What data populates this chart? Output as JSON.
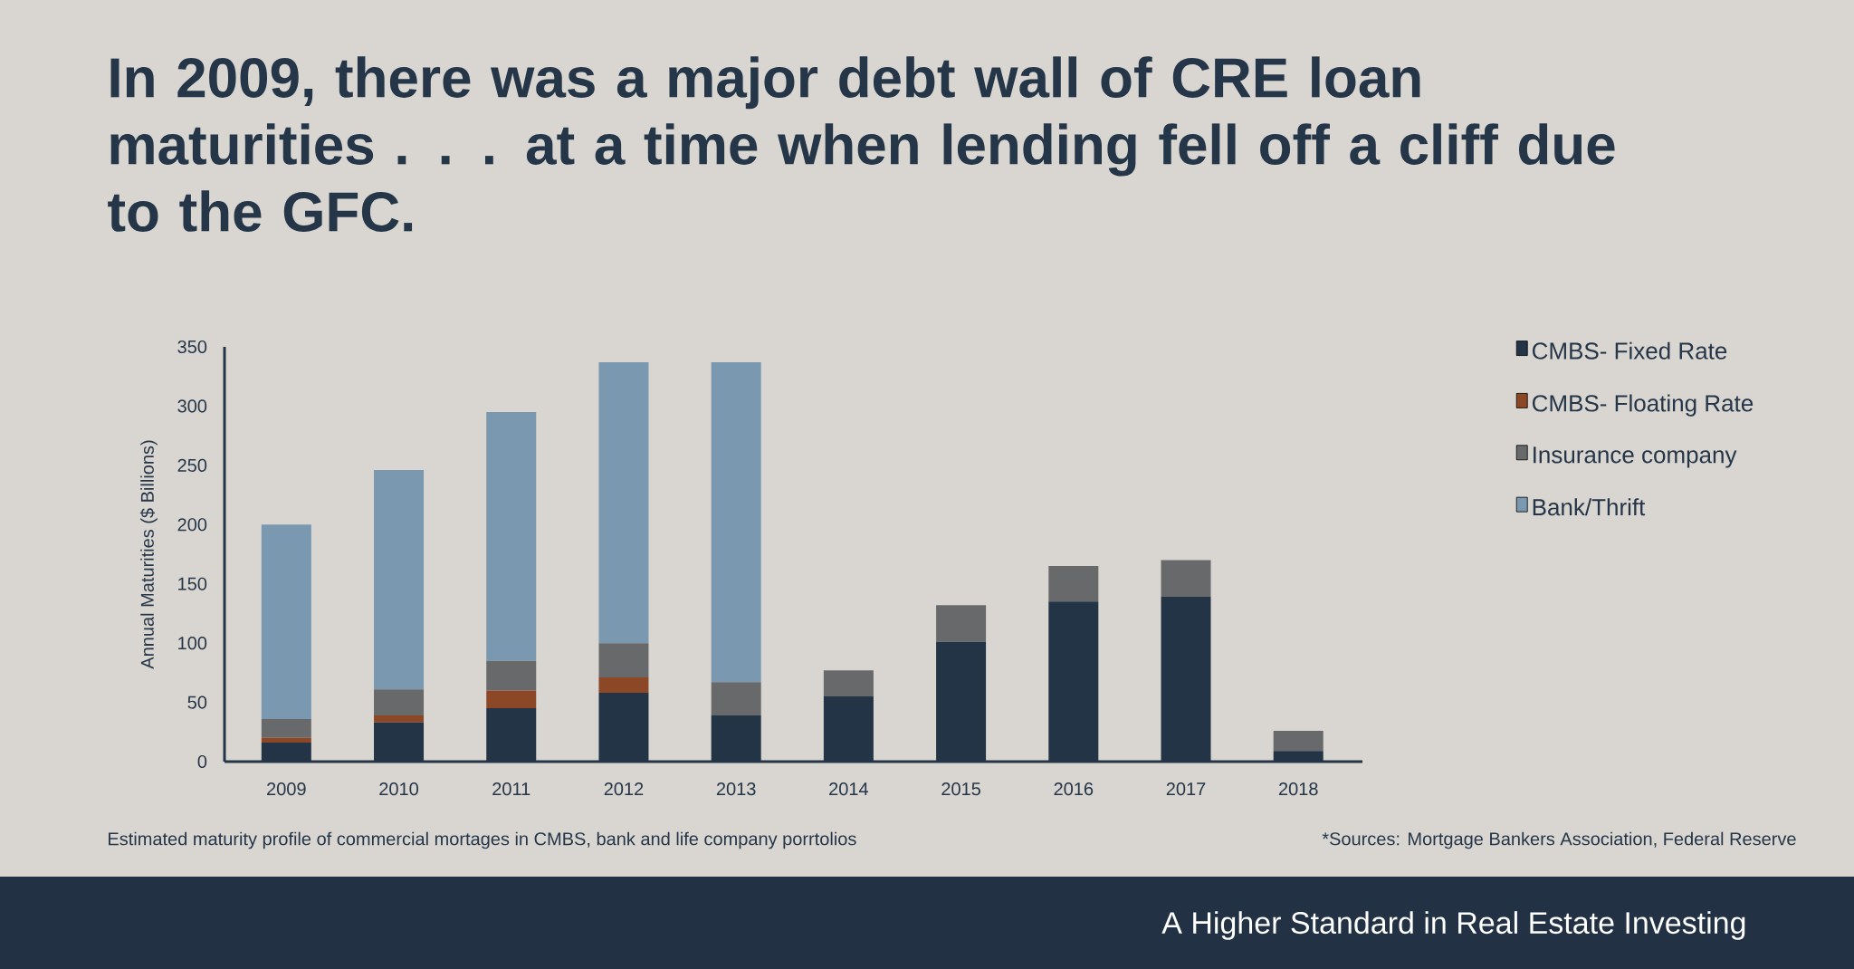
{
  "chart_data": {
    "type": "bar",
    "stacked": true,
    "title": "In 2009, there was a major debt wall of CRE loan maturities . . . at a time when lending fell off a cliff due to the GFC.",
    "ylabel": "Annual Maturities ($ Billions)",
    "categories": [
      "2009",
      "2010",
      "2011",
      "2012",
      "2013",
      "2014",
      "2015",
      "2016",
      "2017",
      "2018"
    ],
    "series": [
      {
        "name": "CMBS- Fixed Rate",
        "color": "#233446",
        "values": [
          16,
          33,
          45,
          58,
          39,
          55,
          101,
          135,
          139,
          9
        ]
      },
      {
        "name": "CMBS- Floating Rate",
        "color": "#8b4726",
        "values": [
          4,
          6,
          15,
          13,
          0,
          0,
          0,
          0,
          0,
          0
        ]
      },
      {
        "name": "Insurance company",
        "color": "#68696b",
        "values": [
          16,
          22,
          25,
          29,
          28,
          22,
          31,
          30,
          31,
          17
        ]
      },
      {
        "name": "Bank/Thrift",
        "color": "#7a98af",
        "values": [
          164,
          185,
          210,
          237,
          270,
          0,
          0,
          0,
          0,
          0
        ]
      }
    ],
    "ylim": [
      0,
      350
    ],
    "yticks": [
      0,
      50,
      100,
      150,
      200,
      250,
      300,
      350
    ],
    "grid": false,
    "legend": "right",
    "annotations": [
      "Estimated maturity profile of commercial mortages in CMBS, bank and life company porrtolios",
      "*Sources: Mortgage Bankers Association, Federal Reserve",
      "A Higher Standard in Real Estate Investing"
    ]
  }
}
